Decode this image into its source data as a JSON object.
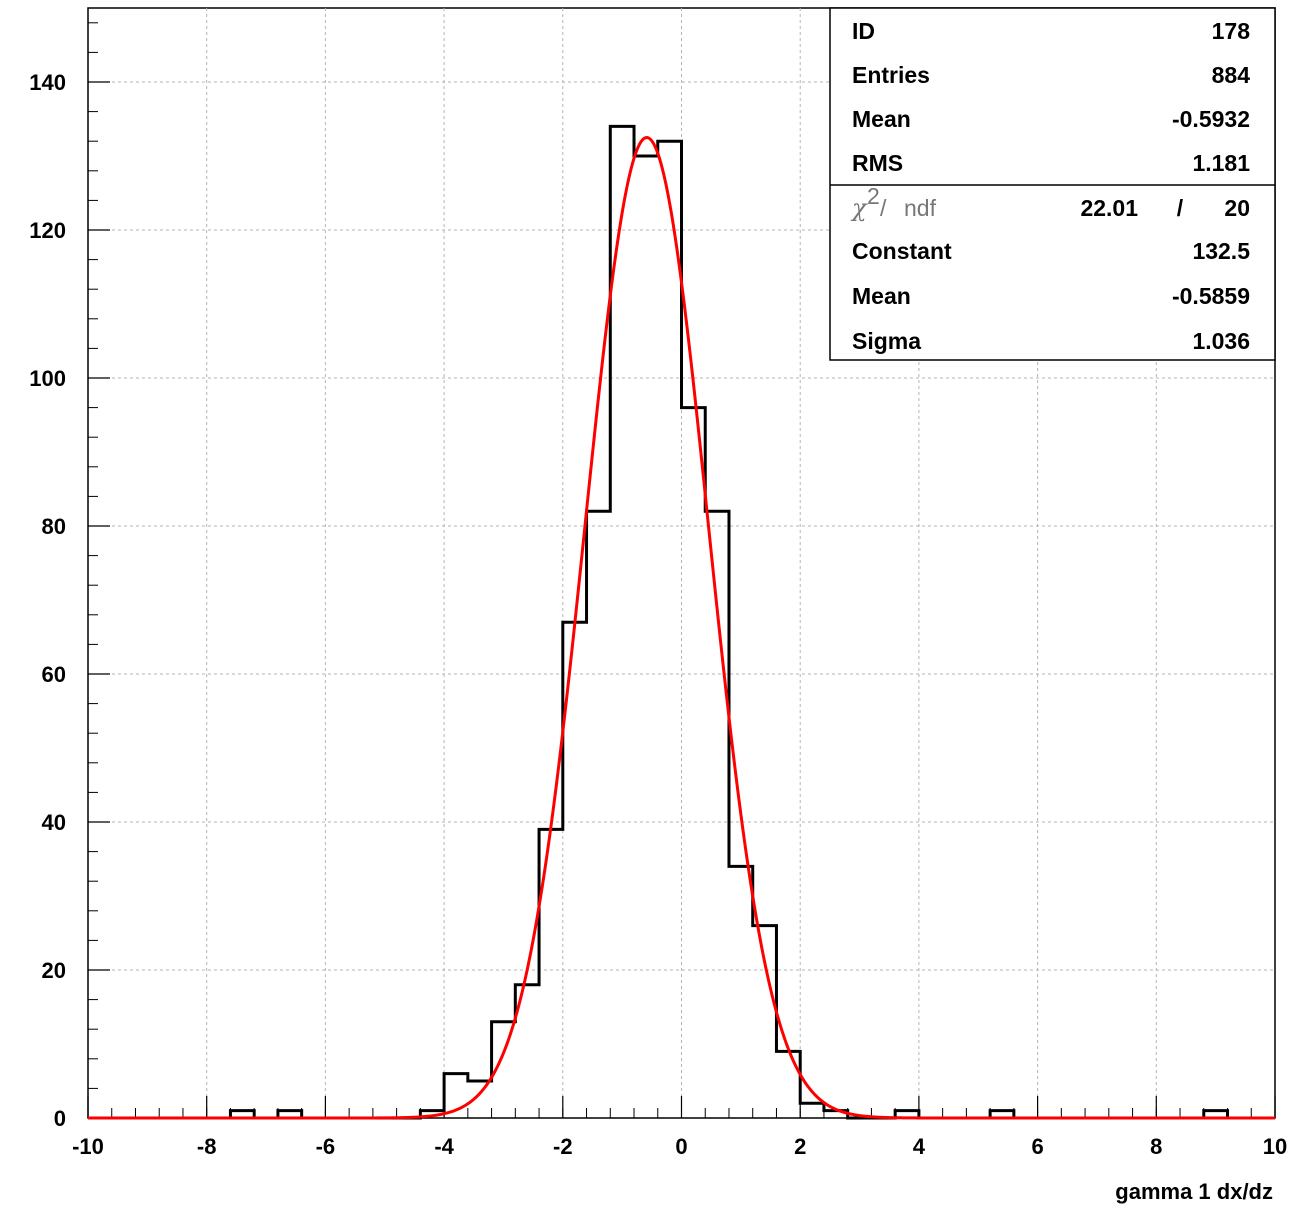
{
  "chart_data": {
    "type": "bar",
    "xlabel": "gamma 1 dx/dz",
    "ylabel": "",
    "xlim": [
      -10,
      10
    ],
    "ylim": [
      0,
      150
    ],
    "x_ticks": [
      -10,
      -8,
      -6,
      -4,
      -2,
      0,
      2,
      4,
      6,
      8,
      10
    ],
    "y_ticks": [
      0,
      20,
      40,
      60,
      80,
      100,
      120,
      140
    ],
    "grid": true,
    "bin_edges": [
      -10,
      -9.6,
      -9.2,
      -8.8,
      -8.4,
      -8,
      -7.6,
      -7.2,
      -6.8,
      -6.4,
      -6,
      -5.6,
      -5.2,
      -4.8,
      -4.4,
      -4,
      -3.6,
      -3.2,
      -2.8,
      -2.4,
      -2,
      -1.6,
      -1.2,
      -0.8,
      -0.4,
      0,
      0.4,
      0.8,
      1.2,
      1.6,
      2,
      2.4,
      2.8,
      3.2,
      3.6,
      4,
      4.4,
      4.8,
      5.2,
      5.6,
      6,
      6.4,
      6.8,
      7.2,
      7.6,
      8,
      8.4,
      8.8,
      9.2,
      9.6,
      10
    ],
    "series": [
      {
        "values": [
          0,
          0,
          0,
          0,
          0,
          0,
          1,
          0,
          1,
          0,
          0,
          0,
          0,
          0,
          1,
          6,
          5,
          13,
          18,
          39,
          67,
          82,
          134,
          130,
          132,
          96,
          82,
          34,
          26,
          9,
          2,
          1,
          0,
          0,
          1,
          0,
          0,
          0,
          1,
          0,
          0,
          0,
          0,
          0,
          0,
          0,
          0,
          1,
          0,
          0
        ],
        "color": "#000000"
      },
      {
        "type": "gaussian-fit",
        "constant": 132.5,
        "mean": -0.5859,
        "sigma": 1.036,
        "color": "#ff0000"
      }
    ]
  },
  "stats_box": {
    "rows": [
      {
        "label": "ID",
        "value": "178"
      },
      {
        "label": "Entries",
        "value": "884"
      },
      {
        "label": "Mean",
        "value": "-0.5932"
      },
      {
        "label": "RMS",
        "value": "1.181"
      }
    ],
    "chi2": {
      "chi_symbol": "χ",
      "sup": "2",
      "slash": "/",
      "ndf_label": "ndf",
      "value": "22.01",
      "sep": "/",
      "ndf": "20"
    },
    "fit_rows": [
      {
        "label": "Constant",
        "value": "132.5"
      },
      {
        "label": "Mean",
        "value": "-0.5859"
      },
      {
        "label": "Sigma",
        "value": "1.036"
      }
    ]
  }
}
